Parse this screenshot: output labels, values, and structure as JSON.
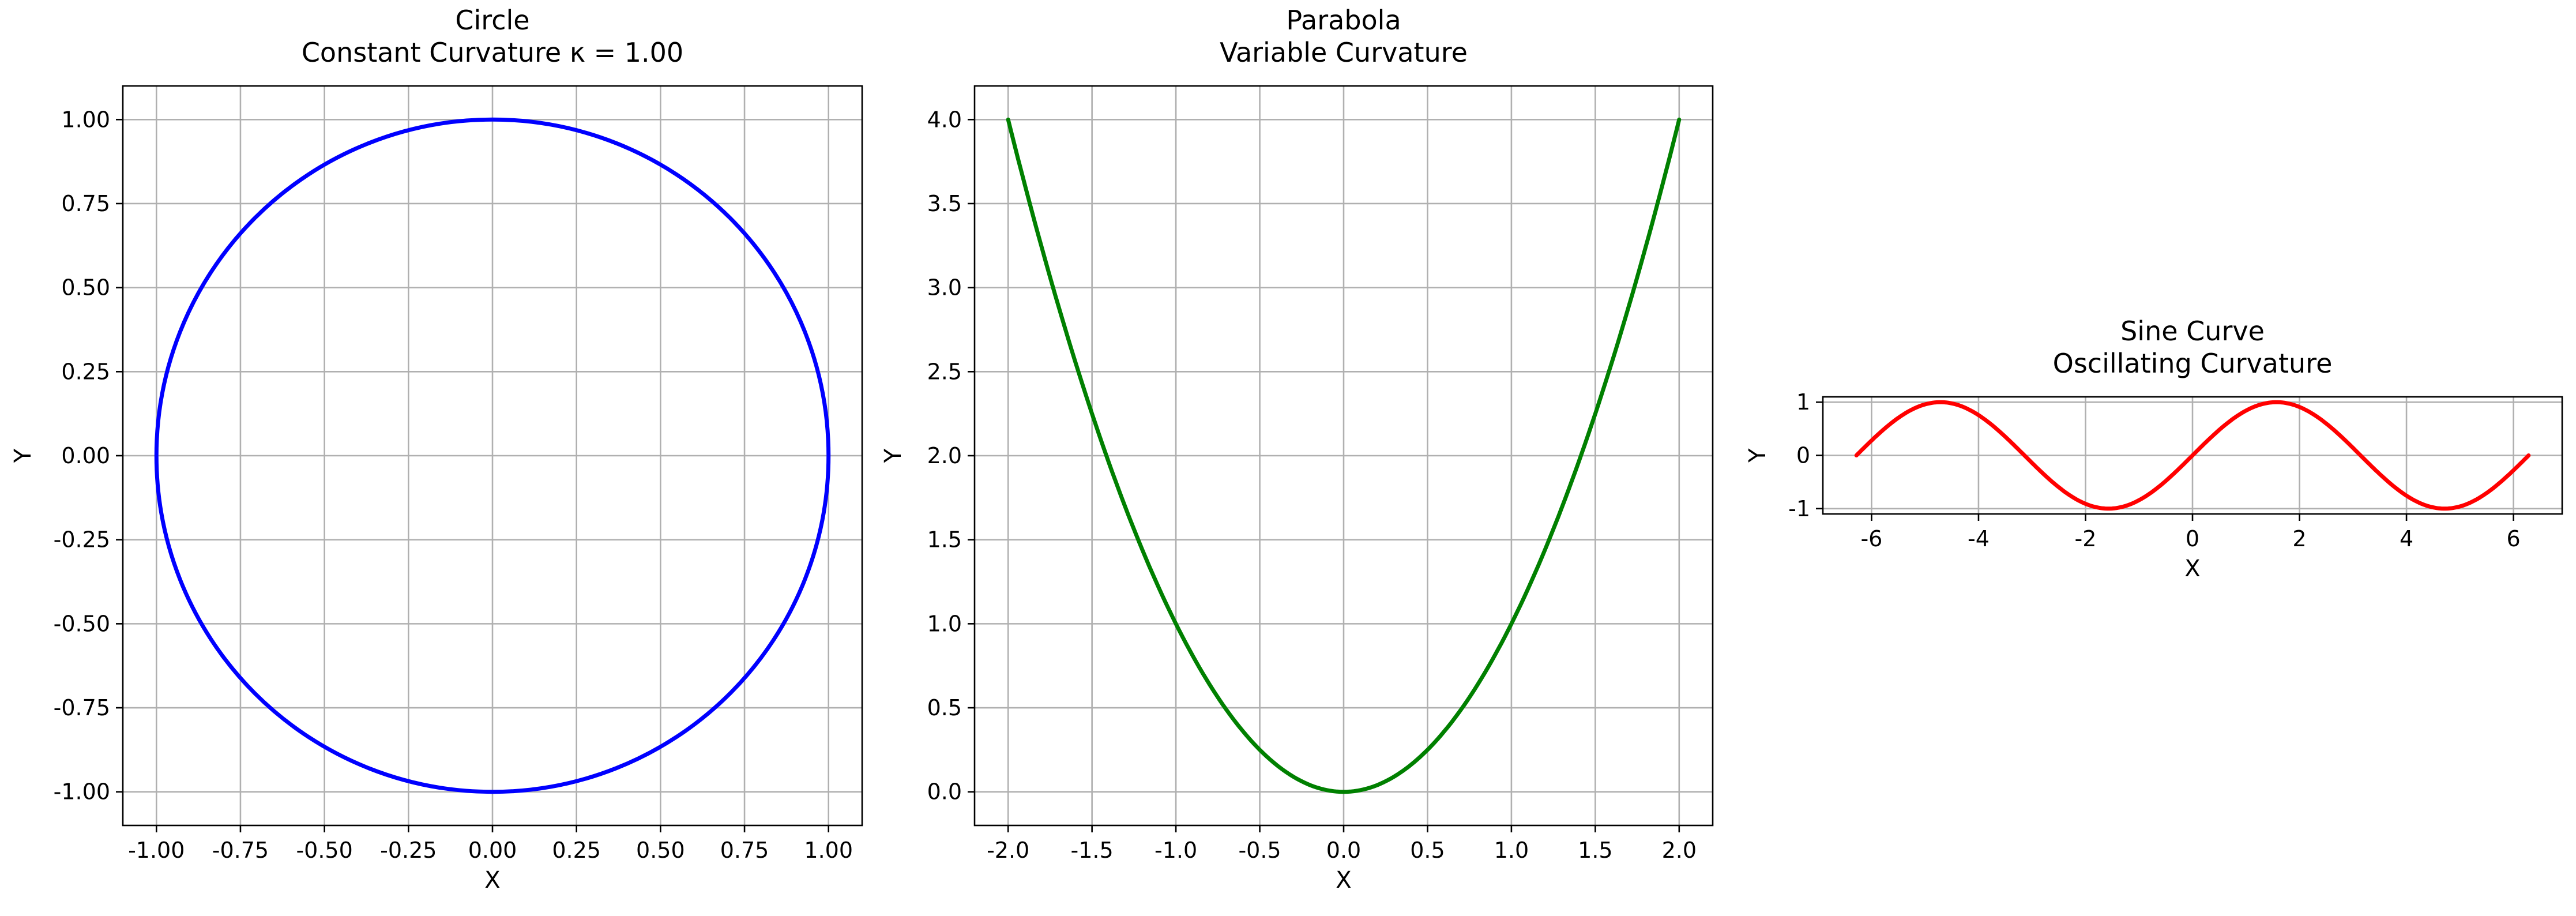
{
  "chart_data": [
    {
      "type": "line",
      "title_lines": [
        "Circle",
        "Constant Curvature κ = 1.00"
      ],
      "xlabel": "X",
      "ylabel": "Y",
      "xlim": [
        -1.1,
        1.1
      ],
      "ylim": [
        -1.1,
        1.1
      ],
      "xticks": [
        -1.0,
        -0.75,
        -0.5,
        -0.25,
        0.0,
        0.25,
        0.5,
        0.75,
        1.0
      ],
      "xtick_labels": [
        "-1.00",
        "-0.75",
        "-0.50",
        "-0.25",
        "0.00",
        "0.25",
        "0.50",
        "0.75",
        "1.00"
      ],
      "yticks": [
        -1.0,
        -0.75,
        -0.5,
        -0.25,
        0.0,
        0.25,
        0.5,
        0.75,
        1.0
      ],
      "ytick_labels": [
        "-1.00",
        "-0.75",
        "-0.50",
        "-0.25",
        "0.00",
        "0.25",
        "0.50",
        "0.75",
        "1.00"
      ],
      "grid": true,
      "series": [
        {
          "color": "#0000ff",
          "x": [
            1.0,
            0.966,
            0.866,
            0.707,
            0.5,
            0.259,
            0.0,
            -0.259,
            -0.5,
            -0.707,
            -0.866,
            -0.966,
            -1.0,
            -0.966,
            -0.866,
            -0.707,
            -0.5,
            -0.259,
            0.0,
            0.259,
            0.5,
            0.707,
            0.866,
            0.966,
            1.0
          ],
          "y": [
            0.0,
            0.259,
            0.5,
            0.707,
            0.866,
            0.966,
            1.0,
            0.966,
            0.866,
            0.707,
            0.5,
            0.259,
            0.0,
            -0.259,
            -0.5,
            -0.707,
            -0.866,
            -0.966,
            -1.0,
            -0.966,
            -0.866,
            -0.707,
            -0.5,
            -0.259,
            0.0
          ]
        }
      ]
    },
    {
      "type": "line",
      "title_lines": [
        "Parabola",
        "Variable Curvature"
      ],
      "xlabel": "X",
      "ylabel": "Y",
      "xlim": [
        -2.2,
        2.2
      ],
      "ylim": [
        -0.2,
        4.2
      ],
      "xticks": [
        -2.0,
        -1.5,
        -1.0,
        -0.5,
        0.0,
        0.5,
        1.0,
        1.5,
        2.0
      ],
      "xtick_labels": [
        "-2.0",
        "-1.5",
        "-1.0",
        "-0.5",
        "0.0",
        "0.5",
        "1.0",
        "1.5",
        "2.0"
      ],
      "yticks": [
        0.0,
        0.5,
        1.0,
        1.5,
        2.0,
        2.5,
        3.0,
        3.5,
        4.0
      ],
      "ytick_labels": [
        "0.0",
        "0.5",
        "1.0",
        "1.5",
        "2.0",
        "2.5",
        "3.0",
        "3.5",
        "4.0"
      ],
      "grid": true,
      "series": [
        {
          "color": "#008000",
          "x": [
            -2.0,
            -1.75,
            -1.5,
            -1.25,
            -1.0,
            -0.75,
            -0.5,
            -0.25,
            0.0,
            0.25,
            0.5,
            0.75,
            1.0,
            1.25,
            1.5,
            1.75,
            2.0
          ],
          "y": [
            4.0,
            3.0625,
            2.25,
            1.5625,
            1.0,
            0.5625,
            0.25,
            0.0625,
            0.0,
            0.0625,
            0.25,
            0.5625,
            1.0,
            1.5625,
            2.25,
            3.0625,
            4.0
          ]
        }
      ]
    },
    {
      "type": "line",
      "title_lines": [
        "Sine Curve",
        "Oscillating Curvature"
      ],
      "xlabel": "X",
      "ylabel": "Y",
      "xlim": [
        -6.91,
        6.91
      ],
      "ylim": [
        -1.1,
        1.1
      ],
      "xticks": [
        -6,
        -4,
        -2,
        0,
        2,
        4,
        6
      ],
      "xtick_labels": [
        "-6",
        "-4",
        "-2",
        "0",
        "2",
        "4",
        "6"
      ],
      "yticks": [
        -1,
        0,
        1
      ],
      "ytick_labels": [
        "-1",
        "0",
        "1"
      ],
      "grid": true,
      "series": [
        {
          "color": "#ff0000",
          "x": [
            -6.283,
            -5.498,
            -4.712,
            -3.927,
            -3.142,
            -2.356,
            -1.571,
            -0.785,
            0.0,
            0.785,
            1.571,
            2.356,
            3.142,
            3.927,
            4.712,
            5.498,
            6.283
          ],
          "y": [
            0.0,
            0.707,
            1.0,
            0.707,
            0.0,
            -0.707,
            -1.0,
            -0.707,
            0.0,
            0.707,
            1.0,
            0.707,
            0.0,
            -0.707,
            -1.0,
            -0.707,
            0.0
          ]
        }
      ]
    }
  ]
}
